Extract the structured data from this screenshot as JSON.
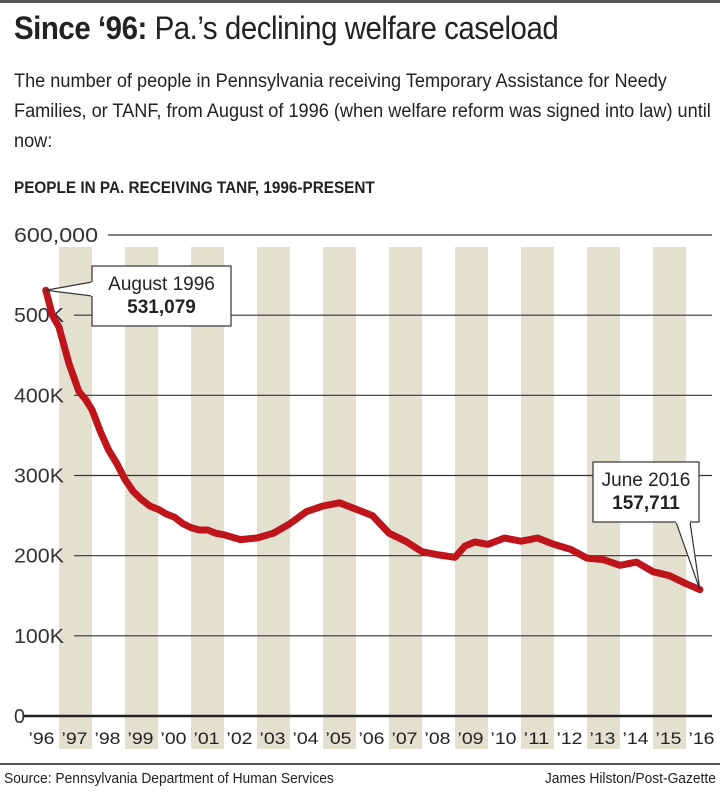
{
  "header": {
    "title_bold": "Since ‘96:",
    "title_rest": " Pa.’s declining welfare caseload",
    "subtitle": "The number of people in Pennsylvania receiving Temporary Assistance for Needy Families, or TANF, from August of 1996 (when welfare reform was signed into law) until now:"
  },
  "footer": {
    "source": "Source: Pennsylvania Department of Human Services",
    "credit": "James Hilston/Post-Gazette"
  },
  "chart_data": {
    "type": "line",
    "title": "PEOPLE IN PA. RECEIVING TANF, 1996-PRESENT",
    "xlabel": "",
    "ylabel": "",
    "ylim": [
      0,
      600000
    ],
    "xlim": [
      1996,
      2017
    ],
    "grid": "horizontal",
    "line_color": "#c0141c",
    "band_color": "#e4e0d0",
    "y_ticks": [
      {
        "value": 0,
        "label": "0"
      },
      {
        "value": 100000,
        "label": "100K"
      },
      {
        "value": 200000,
        "label": "200K"
      },
      {
        "value": 300000,
        "label": "300K"
      },
      {
        "value": 400000,
        "label": "400K"
      },
      {
        "value": 500000,
        "label": "500K"
      },
      {
        "value": 600000,
        "label": "600,000"
      }
    ],
    "x_ticks": [
      "’96",
      "’97",
      "’98",
      "’99",
      "’00",
      "’01",
      "’02",
      "’03",
      "’04",
      "’05",
      "’06",
      "’07",
      "’08",
      "’09",
      "’10",
      "’11",
      "’12",
      "’13",
      "’14",
      "’15",
      "’16"
    ],
    "series": [
      {
        "x": [
          1996.6,
          1996.8,
          1997.0,
          1997.3,
          1997.6,
          1997.8,
          1998.0,
          1998.25,
          1998.5,
          1998.75,
          1999.0,
          1999.25,
          1999.5,
          1999.75,
          2000.0,
          2000.25,
          2000.5,
          2000.75,
          2001.0,
          2001.25,
          2001.5,
          2001.75,
          2002.0,
          2002.5,
          2003.0,
          2003.5,
          2004.0,
          2004.5,
          2005.0,
          2005.5,
          2006.0,
          2006.5,
          2007.0,
          2007.5,
          2008.0,
          2008.5,
          2009.0,
          2009.3,
          2009.6,
          2010.0,
          2010.5,
          2011.0,
          2011.5,
          2012.0,
          2012.5,
          2013.0,
          2013.5,
          2014.0,
          2014.5,
          2015.0,
          2015.5,
          2016.0,
          2016.42
        ],
        "values": [
          531079,
          500000,
          485000,
          440000,
          405000,
          395000,
          382000,
          355000,
          332000,
          315000,
          295000,
          280000,
          270000,
          262000,
          258000,
          252000,
          248000,
          240000,
          235000,
          232000,
          232000,
          228000,
          226000,
          220000,
          222000,
          228000,
          240000,
          255000,
          262000,
          266000,
          258000,
          250000,
          228000,
          218000,
          205000,
          201000,
          198000,
          212000,
          217000,
          214000,
          222000,
          218000,
          222000,
          214000,
          208000,
          197000,
          195000,
          188000,
          192000,
          180000,
          175000,
          165000,
          157711
        ]
      }
    ],
    "annotations": [
      {
        "label": "August 1996",
        "value": "531,079"
      },
      {
        "label": "June 2016",
        "value": "157,711"
      }
    ]
  }
}
